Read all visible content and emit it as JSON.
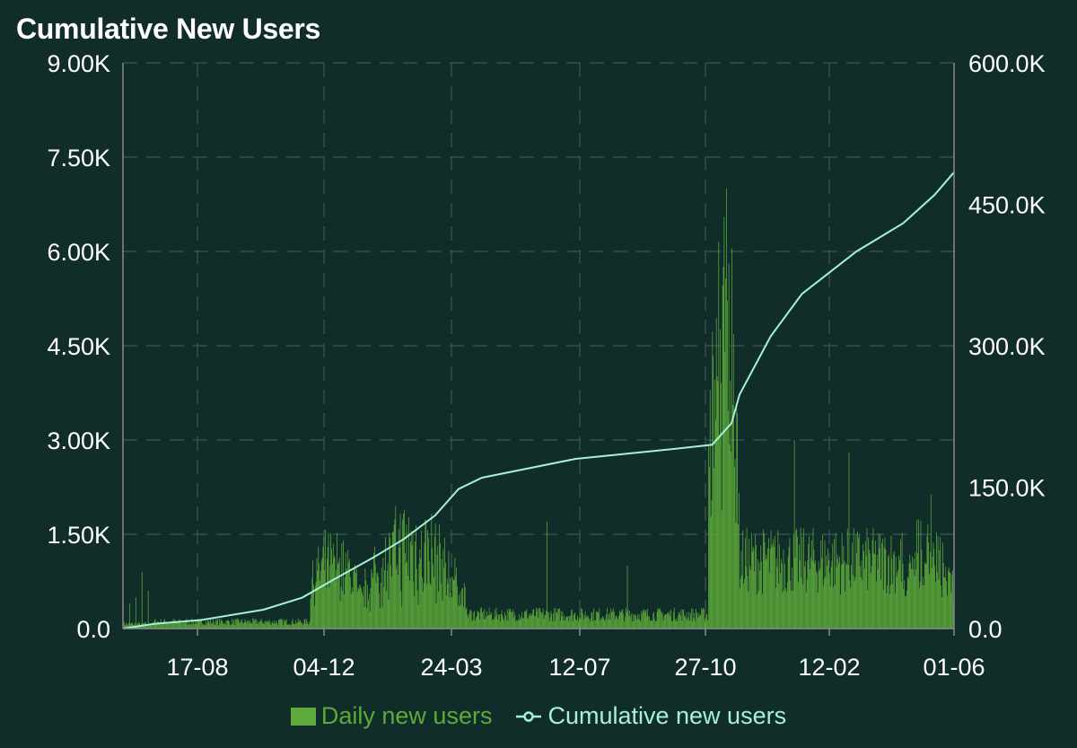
{
  "header": {
    "title": "Cumulative New Users"
  },
  "colors": {
    "background": "#112d2a",
    "bar": "#5daa3a",
    "line": "#a6f0dc",
    "text": "#ffffff",
    "grid": "#3f5653",
    "axis": "#8a8a8a"
  },
  "legend": {
    "daily_label": "Daily new users",
    "cumulative_label": "Cumulative new users"
  },
  "chart_data": {
    "type": "bar",
    "title": "Cumulative New Users",
    "x_tick_labels": [
      "17-08",
      "04-12",
      "24-03",
      "12-07",
      "27-10",
      "12-02",
      "01-06"
    ],
    "y_left": {
      "ticks": [
        "0.0",
        "1.50K",
        "3.00K",
        "4.50K",
        "6.00K",
        "7.50K",
        "9.00K"
      ],
      "range": [
        0,
        9000
      ]
    },
    "y_right": {
      "ticks": [
        "0.0",
        "150.0K",
        "300.0K",
        "450.0K",
        "600.0K"
      ],
      "range": [
        0,
        600000
      ]
    },
    "grid": true,
    "legend_position": "bottom",
    "series": [
      {
        "name": "Daily new users",
        "type": "bar",
        "axis": "left",
        "approx_values_by_day_range": [
          {
            "days": [
              0,
              40
            ],
            "typical": 80,
            "spikes": [
              400,
              500,
              900,
              600
            ]
          },
          {
            "days": [
              40,
              240
            ],
            "typical": 120
          },
          {
            "days": [
              240,
              300
            ],
            "typical": 800,
            "peak": 1600
          },
          {
            "days": [
              300,
              440
            ],
            "typical": 500,
            "peak": 2500
          },
          {
            "days": [
              440,
              750
            ],
            "typical": 250,
            "spikes": [
              1700,
              1000
            ]
          },
          {
            "days": [
              750,
              790
            ],
            "typical": 3000,
            "peak": 7000
          },
          {
            "days": [
              790,
              1000
            ],
            "typical": 1200,
            "spikes": [
              3000,
              2800
            ]
          },
          {
            "days": [
              1000,
              1065
            ],
            "typical": 700,
            "peak": 2200
          }
        ]
      },
      {
        "name": "Cumulative new users",
        "type": "line",
        "axis": "right",
        "points_day_value": [
          [
            0,
            0
          ],
          [
            40,
            5000
          ],
          [
            100,
            9000
          ],
          [
            180,
            20000
          ],
          [
            230,
            33000
          ],
          [
            270,
            52000
          ],
          [
            320,
            75000
          ],
          [
            360,
            95000
          ],
          [
            400,
            120000
          ],
          [
            430,
            148000
          ],
          [
            460,
            160000
          ],
          [
            520,
            170000
          ],
          [
            580,
            180000
          ],
          [
            640,
            185000
          ],
          [
            700,
            190000
          ],
          [
            755,
            195000
          ],
          [
            780,
            218000
          ],
          [
            790,
            248000
          ],
          [
            830,
            310000
          ],
          [
            870,
            355000
          ],
          [
            940,
            400000
          ],
          [
            1000,
            430000
          ],
          [
            1040,
            460000
          ],
          [
            1065,
            484000
          ]
        ]
      }
    ]
  }
}
